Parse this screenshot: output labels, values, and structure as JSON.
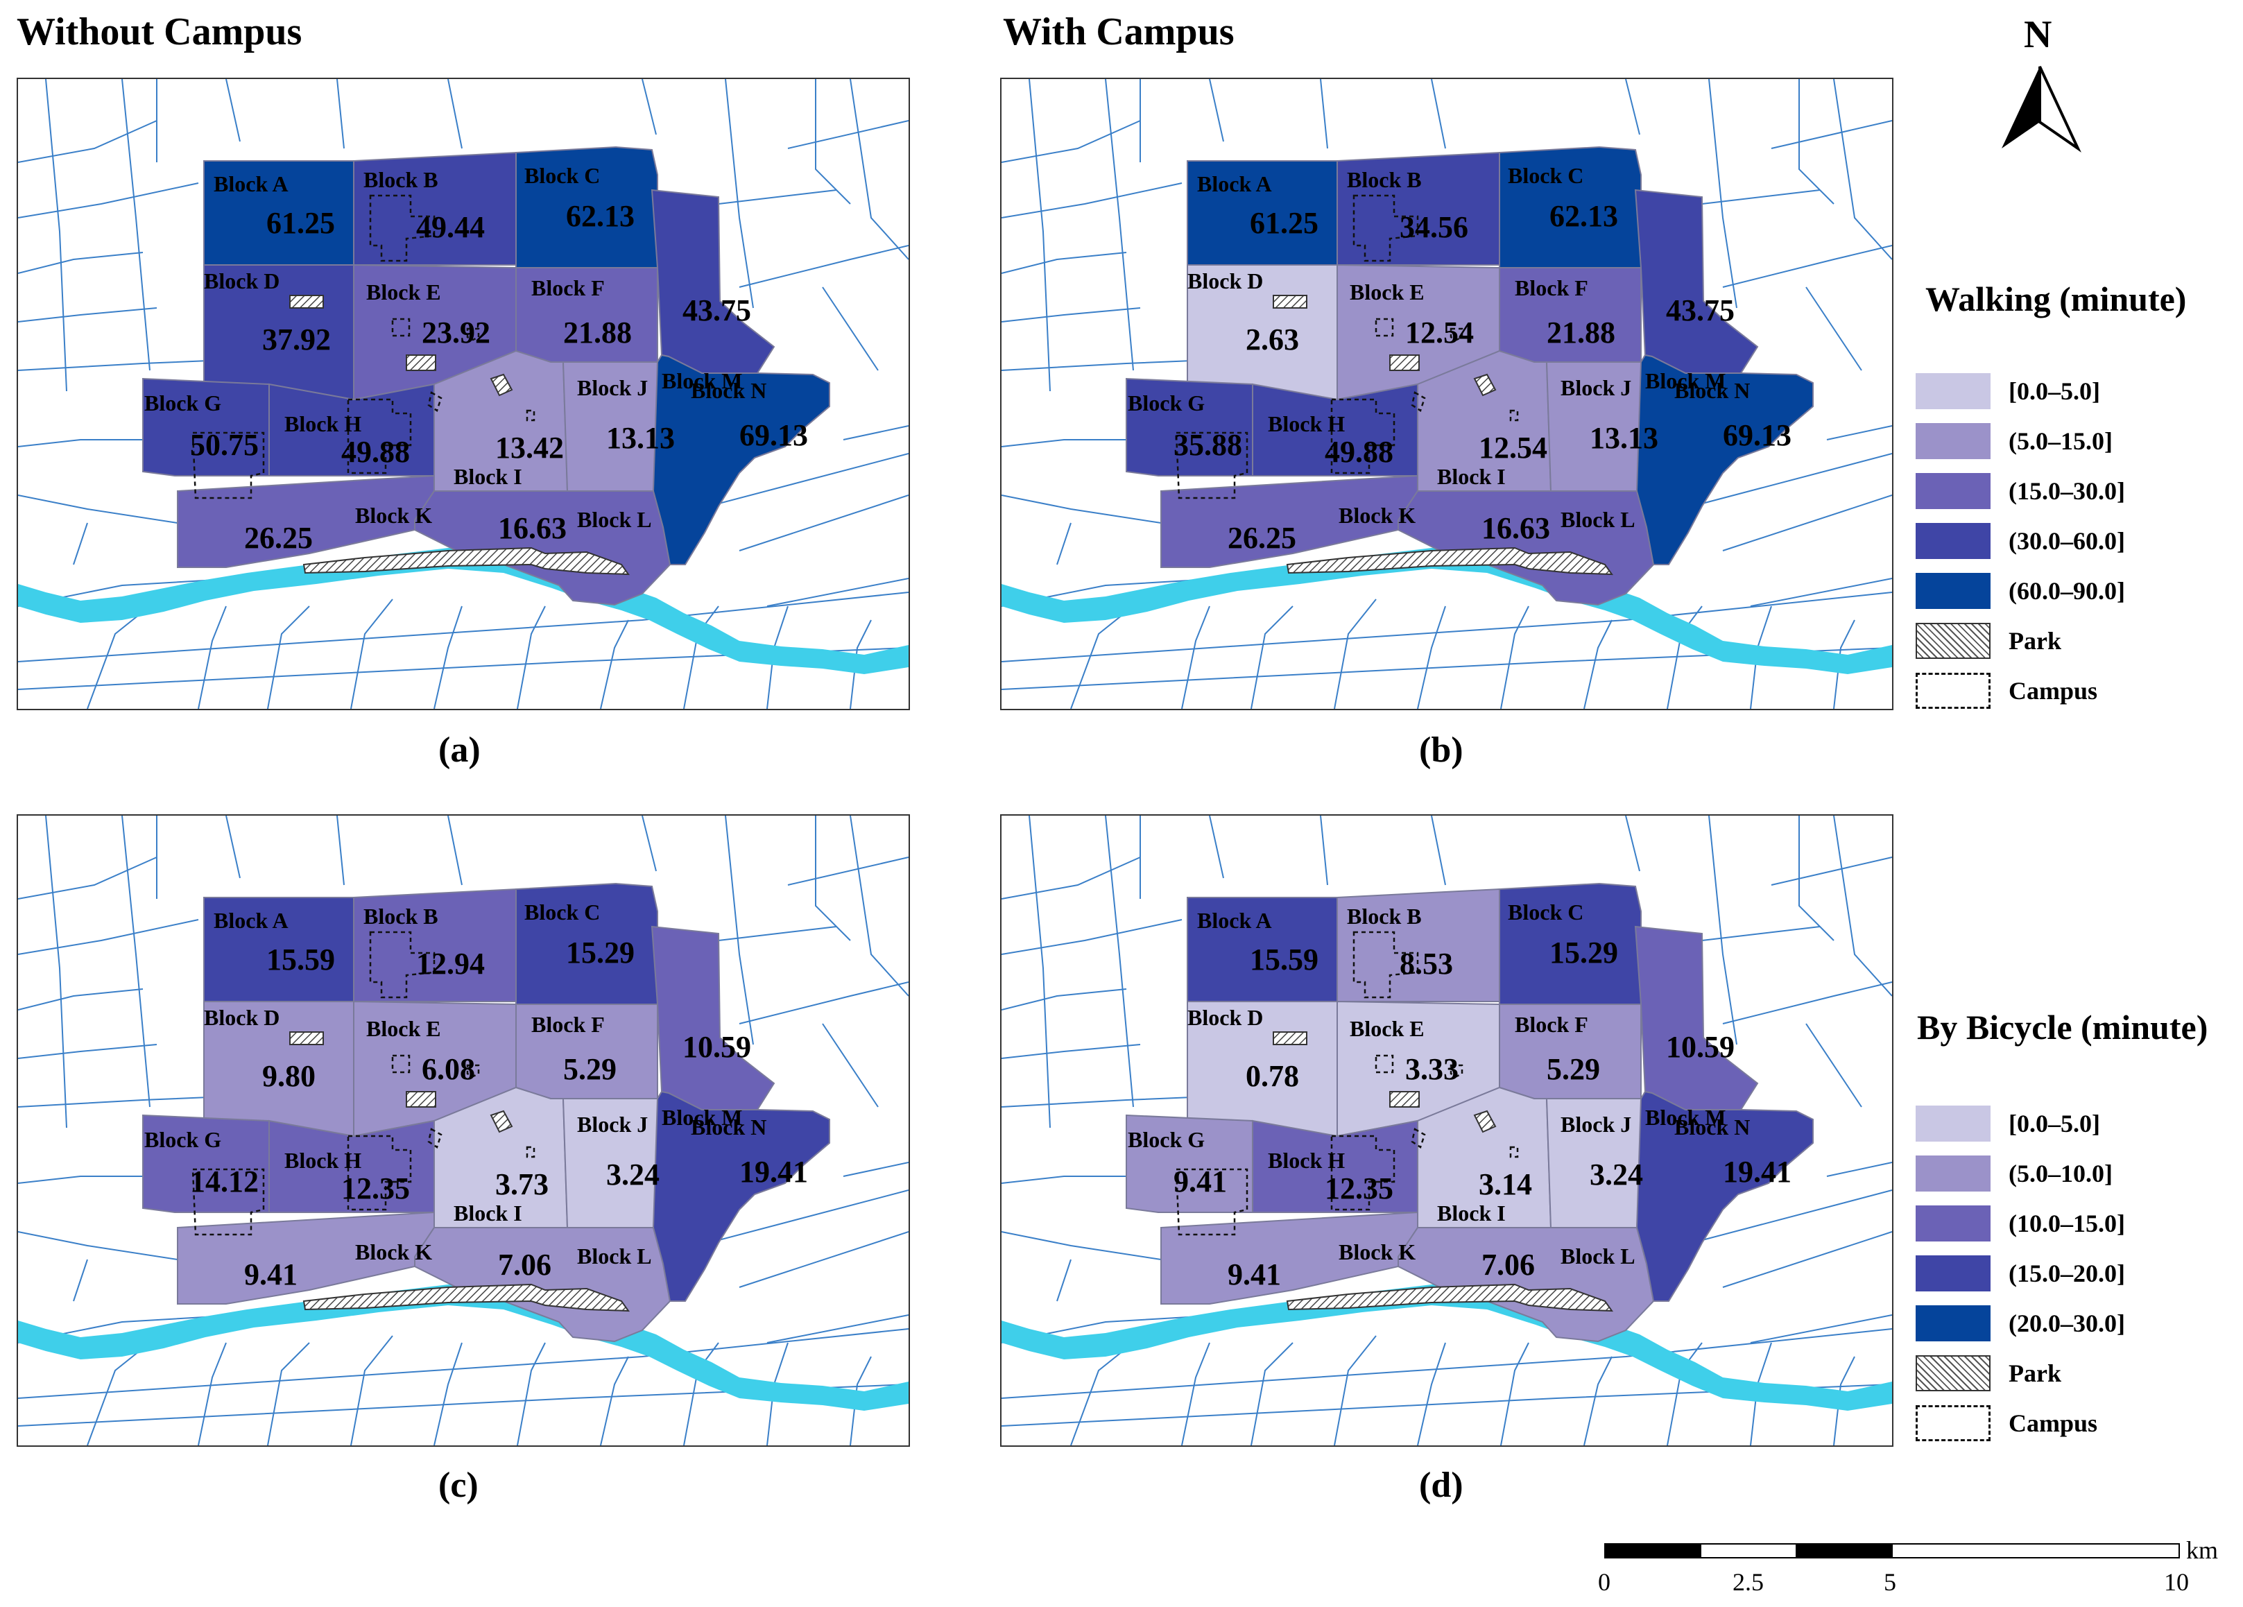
{
  "headings": {
    "left": "Without Campus",
    "right": "With Campus"
  },
  "captions": {
    "a": "(a)",
    "b": "(b)",
    "c": "(c)",
    "d": "(d)"
  },
  "north_label": "N",
  "legends": {
    "walking": {
      "title": "Walking (minute)",
      "classes": [
        {
          "label": "[0.0–5.0]",
          "color": "#c9c7e4"
        },
        {
          "label": "(5.0–15.0]",
          "color": "#9b92c9"
        },
        {
          "label": "(15.0–30.0]",
          "color": "#6b62b6"
        },
        {
          "label": "(30.0–60.0]",
          "color": "#3f45a6"
        },
        {
          "label": "(60.0–90.0]",
          "color": "#05449b"
        }
      ],
      "park": "Park",
      "campus": "Campus"
    },
    "bicycle": {
      "title": "By Bicycle (minute)",
      "classes": [
        {
          "label": "[0.0–5.0]",
          "color": "#c9c7e4"
        },
        {
          "label": "(5.0–10.0]",
          "color": "#9b92c9"
        },
        {
          "label": "(10.0–15.0]",
          "color": "#6b62b6"
        },
        {
          "label": "(15.0–20.0]",
          "color": "#3f45a6"
        },
        {
          "label": "(20.0–30.0]",
          "color": "#05449b"
        }
      ],
      "park": "Park",
      "campus": "Campus"
    }
  },
  "scale": {
    "unit": "km",
    "ticks": [
      "0",
      "2.5",
      "5",
      "10"
    ]
  },
  "colors": {
    "river": "#3fcfea",
    "road": "#3a7fc8",
    "block_border": "#7a7a9a"
  },
  "maps": {
    "a": {
      "legend": "walking",
      "values": {
        "A": "61.25",
        "B": "49.44",
        "C": "62.13",
        "D": "37.92",
        "E": "23.92",
        "F": "21.88",
        "G": "50.75",
        "H": "49.88",
        "I": "13.42",
        "J": "13.13",
        "K": "26.25",
        "L": "16.63",
        "M": "43.75",
        "N": "69.13"
      }
    },
    "b": {
      "legend": "walking",
      "values": {
        "A": "61.25",
        "B": "34.56",
        "C": "62.13",
        "D": "2.63",
        "E": "12.54",
        "F": "21.88",
        "G": "35.88",
        "H": "49.88",
        "I": "12.54",
        "J": "13.13",
        "K": "26.25",
        "L": "16.63",
        "M": "43.75",
        "N": "69.13"
      }
    },
    "c": {
      "legend": "bicycle",
      "values": {
        "A": "15.59",
        "B": "12.94",
        "C": "15.29",
        "D": "9.80",
        "E": "6.08",
        "F": "5.29",
        "G": "14.12",
        "H": "12.35",
        "I": "3.73",
        "J": "3.24",
        "K": "9.41",
        "L": "7.06",
        "M": "10.59",
        "N": "19.41"
      }
    },
    "d": {
      "legend": "bicycle",
      "values": {
        "A": "15.59",
        "B": "8.53",
        "C": "15.29",
        "D": "0.78",
        "E": "3.33",
        "F": "5.29",
        "G": "9.41",
        "H": "12.35",
        "I": "3.14",
        "J": "3.24",
        "K": "9.41",
        "L": "7.06",
        "M": "10.59",
        "N": "19.41"
      }
    }
  },
  "block_names": {
    "A": "Block A",
    "B": "Block B",
    "C": "Block C",
    "D": "Block D",
    "E": "Block E",
    "F": "Block F",
    "G": "Block G",
    "H": "Block H",
    "I": "Block I",
    "J": "Block J",
    "K": "Block K",
    "L": "Block L",
    "M": "Block M",
    "N": "Block N"
  }
}
